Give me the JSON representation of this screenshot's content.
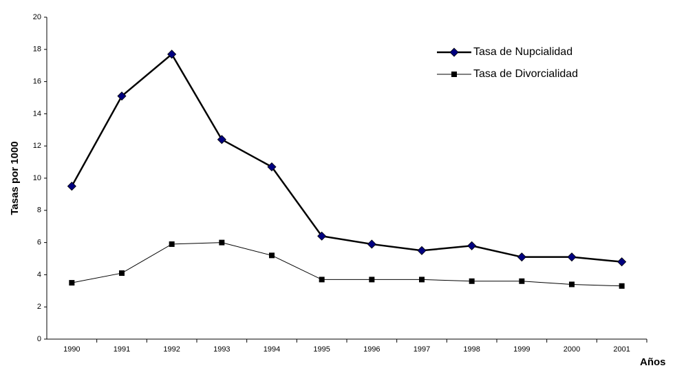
{
  "chart_data": {
    "type": "line",
    "y_label": "Tasas por 1000",
    "x_label": "Años",
    "categories": [
      "1990",
      "1991",
      "1992",
      "1993",
      "1994",
      "1995",
      "1996",
      "1997",
      "1998",
      "1999",
      "2000",
      "2001"
    ],
    "series": [
      {
        "name": "Tasa de Nupcialidad",
        "color": "#000080",
        "line_color": "#000000",
        "marker": "diamond",
        "line_width": 2.5,
        "values": [
          9.5,
          15.1,
          17.7,
          12.4,
          10.7,
          6.4,
          5.9,
          5.5,
          5.8,
          5.1,
          5.1,
          4.8
        ]
      },
      {
        "name": "Tasa de Divorcialidad",
        "color": "#000000",
        "line_color": "#000000",
        "marker": "square",
        "line_width": 1,
        "values": [
          3.5,
          4.1,
          5.9,
          6.0,
          5.2,
          3.7,
          3.7,
          3.7,
          3.6,
          3.6,
          3.4,
          3.3
        ]
      }
    ],
    "ylim": [
      0,
      20
    ],
    "yticks": [
      0,
      2,
      4,
      6,
      8,
      10,
      12,
      14,
      16,
      18,
      20
    ],
    "grid": false,
    "legend": "upper right"
  }
}
